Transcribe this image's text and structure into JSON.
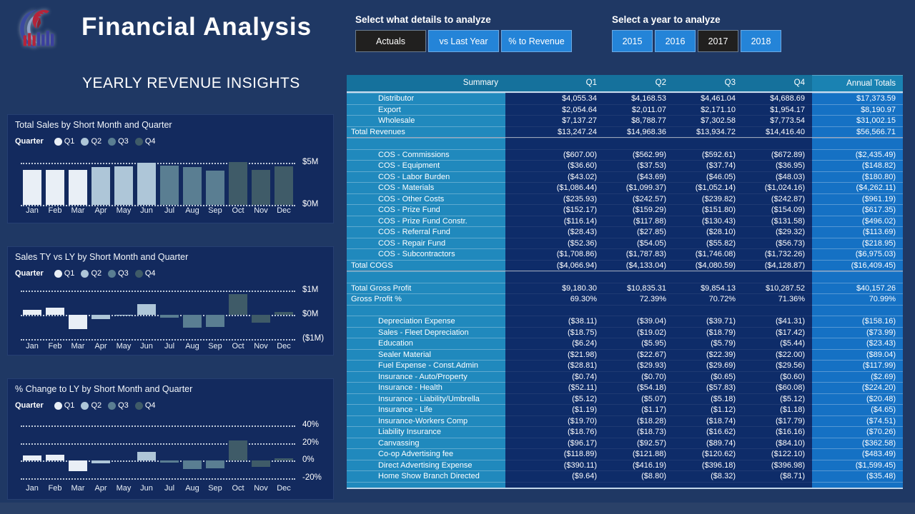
{
  "app": {
    "title": "Financial Analysis",
    "subtitle": "YEARLY REVENUE INSIGHTS",
    "logo": "eagle-bars-logo"
  },
  "colors": {
    "page_bg": "#1F3864",
    "card_bg": "#132A5E",
    "footer_bg": "#2A4168",
    "button_blue": "#2484D8",
    "button_dark": "#21201F",
    "table_header": "#15719C",
    "table_summary_col": "#2089BD",
    "table_data_bg": "#0E2C69",
    "table_annual_col": "#1571C4",
    "q1": "#E9EFF6",
    "q2": "#AEC6D8",
    "q3": "#5A7E92",
    "q4": "#3F5B68"
  },
  "slicers": {
    "details": {
      "label": "Select what details to analyze",
      "options": [
        {
          "label": "Actuals",
          "selected": true
        },
        {
          "label": "vs Last Year",
          "selected": false
        },
        {
          "label": "% to Revenue",
          "selected": false
        }
      ]
    },
    "year": {
      "label": "Select a year to analyze",
      "options": [
        {
          "label": "2015",
          "selected": false
        },
        {
          "label": "2016",
          "selected": false
        },
        {
          "label": "2017",
          "selected": true
        },
        {
          "label": "2018",
          "selected": false
        }
      ]
    }
  },
  "legend": {
    "caption": "Quarter",
    "entries": [
      "Q1",
      "Q2",
      "Q3",
      "Q4"
    ]
  },
  "chart_data": [
    {
      "type": "bar",
      "title": "Total Sales by Short Month and Quarter",
      "categories": [
        "Jan",
        "Feb",
        "Mar",
        "Apr",
        "May",
        "Jun",
        "Jul",
        "Aug",
        "Sep",
        "Oct",
        "Nov",
        "Dec"
      ],
      "values": [
        4.2,
        4.2,
        4.15,
        4.55,
        4.6,
        5.05,
        4.65,
        4.55,
        4.1,
        5.1,
        4.2,
        4.6
      ],
      "unit": "$M",
      "quarter_of_month": [
        1,
        1,
        1,
        2,
        2,
        2,
        3,
        3,
        3,
        4,
        4,
        4
      ],
      "legend_entries": [
        "Q1",
        "Q2",
        "Q3",
        "Q4"
      ],
      "gridlines": [
        {
          "value": 5,
          "label": "$5M"
        },
        {
          "value": 0,
          "label": "$0M"
        }
      ],
      "ylim": [
        0,
        5.45
      ],
      "grid": "dotted",
      "legend_position": "top"
    },
    {
      "type": "bar",
      "title": "Sales TY vs LY by Short Month and Quarter",
      "categories": [
        "Jan",
        "Feb",
        "Mar",
        "Apr",
        "May",
        "Jun",
        "Jul",
        "Aug",
        "Sep",
        "Oct",
        "Nov",
        "Dec"
      ],
      "values": [
        0.22,
        0.29,
        -0.59,
        -0.18,
        -0.03,
        0.45,
        -0.13,
        -0.54,
        -0.49,
        0.85,
        -0.33,
        0.11
      ],
      "unit": "$M",
      "quarter_of_month": [
        1,
        1,
        1,
        2,
        2,
        2,
        3,
        3,
        3,
        4,
        4,
        4
      ],
      "legend_entries": [
        "Q1",
        "Q2",
        "Q3",
        "Q4"
      ],
      "gridlines": [
        {
          "value": 1,
          "label": "$1M"
        },
        {
          "value": 0,
          "label": "$0M"
        },
        {
          "value": -1,
          "label": "($1M)"
        }
      ],
      "ylim": [
        -1.12,
        1.12
      ],
      "grid": "dotted",
      "legend_position": "top"
    },
    {
      "type": "bar",
      "title": "% Change to LY by Short Month and Quarter",
      "categories": [
        "Jan",
        "Feb",
        "Mar",
        "Apr",
        "May",
        "Jun",
        "Jul",
        "Aug",
        "Sep",
        "Oct",
        "Nov",
        "Dec"
      ],
      "values": [
        6,
        7,
        -12,
        -3,
        0,
        10,
        -2,
        -10,
        -9,
        23,
        -7,
        3
      ],
      "unit": "%",
      "quarter_of_month": [
        1,
        1,
        1,
        2,
        2,
        2,
        3,
        3,
        3,
        4,
        4,
        4
      ],
      "legend_entries": [
        "Q1",
        "Q2",
        "Q3",
        "Q4"
      ],
      "gridlines": [
        {
          "value": 40,
          "label": "40%"
        },
        {
          "value": 20,
          "label": "20%"
        },
        {
          "value": 0,
          "label": "0%"
        },
        {
          "value": -20,
          "label": "-20%"
        }
      ],
      "ylim": [
        -26,
        46
      ],
      "grid": "dotted",
      "legend_position": "top"
    }
  ],
  "table": {
    "columns": [
      "Summary",
      "Q1",
      "Q2",
      "Q3",
      "Q4",
      "Annual Totals"
    ],
    "rows": [
      {
        "style": "item",
        "label": "Distributor",
        "values": [
          "$4,055.34",
          "$4,168.53",
          "$4,461.04",
          "$4,688.69",
          "$17,373.59"
        ]
      },
      {
        "style": "item",
        "label": "Export",
        "values": [
          "$2,054.64",
          "$2,011.07",
          "$2,171.10",
          "$1,954.17",
          "$8,190.97"
        ]
      },
      {
        "style": "item",
        "label": "Wholesale",
        "values": [
          "$7,137.27",
          "$8,788.77",
          "$7,302.58",
          "$7,773.54",
          "$31,002.15"
        ]
      },
      {
        "style": "total",
        "label": "Total Revenues",
        "values": [
          "$13,247.24",
          "$14,968.36",
          "$13,934.72",
          "$14,416.40",
          "$56,566.71"
        ]
      },
      {
        "style": "blank",
        "label": "",
        "values": [
          "",
          "",
          "",
          "",
          ""
        ]
      },
      {
        "style": "item",
        "label": "COS - Commissions",
        "values": [
          "($607.00)",
          "($562.99)",
          "($592.61)",
          "($672.89)",
          "($2,435.49)"
        ]
      },
      {
        "style": "item",
        "label": "COS - Equipment",
        "values": [
          "($36.60)",
          "($37.53)",
          "($37.74)",
          "($36.95)",
          "($148.82)"
        ]
      },
      {
        "style": "item",
        "label": "COS - Labor Burden",
        "values": [
          "($43.02)",
          "($43.69)",
          "($46.05)",
          "($48.03)",
          "($180.80)"
        ]
      },
      {
        "style": "item",
        "label": "COS - Materials",
        "values": [
          "($1,086.44)",
          "($1,099.37)",
          "($1,052.14)",
          "($1,024.16)",
          "($4,262.11)"
        ]
      },
      {
        "style": "item",
        "label": "COS - Other Costs",
        "values": [
          "($235.93)",
          "($242.57)",
          "($239.82)",
          "($242.87)",
          "($961.19)"
        ]
      },
      {
        "style": "item",
        "label": "COS - Prize Fund",
        "values": [
          "($152.17)",
          "($159.29)",
          "($151.80)",
          "($154.09)",
          "($617.35)"
        ]
      },
      {
        "style": "item",
        "label": "COS - Prize Fund Constr.",
        "values": [
          "($116.14)",
          "($117.88)",
          "($130.43)",
          "($131.58)",
          "($496.02)"
        ]
      },
      {
        "style": "item",
        "label": "COS - Referral Fund",
        "values": [
          "($28.43)",
          "($27.85)",
          "($28.10)",
          "($29.32)",
          "($113.69)"
        ]
      },
      {
        "style": "item",
        "label": "COS - Repair Fund",
        "values": [
          "($52.36)",
          "($54.05)",
          "($55.82)",
          "($56.73)",
          "($218.95)"
        ]
      },
      {
        "style": "item",
        "label": "COS - Subcontractors",
        "values": [
          "($1,708.86)",
          "($1,787.83)",
          "($1,746.08)",
          "($1,732.26)",
          "($6,975.03)"
        ]
      },
      {
        "style": "total",
        "label": "Total COGS",
        "values": [
          "($4,066.94)",
          "($4,133.04)",
          "($4,080.59)",
          "($4,128.87)",
          "($16,409.45)"
        ]
      },
      {
        "style": "blank",
        "label": "",
        "values": [
          "",
          "",
          "",
          "",
          ""
        ]
      },
      {
        "style": "subtotal",
        "label": "Total Gross Profit",
        "values": [
          "$9,180.30",
          "$10,835.31",
          "$9,854.13",
          "$10,287.52",
          "$40,157.26"
        ]
      },
      {
        "style": "subtotal",
        "label": "Gross Profit %",
        "values": [
          "69.30%",
          "72.39%",
          "70.72%",
          "71.36%",
          "70.99%"
        ]
      },
      {
        "style": "blank",
        "label": "",
        "values": [
          "",
          "",
          "",
          "",
          ""
        ]
      },
      {
        "style": "item",
        "label": "Depreciation Expense",
        "values": [
          "($38.11)",
          "($39.04)",
          "($39.71)",
          "($41.31)",
          "($158.16)"
        ]
      },
      {
        "style": "item",
        "label": "Sales - Fleet Depreciation",
        "values": [
          "($18.75)",
          "($19.02)",
          "($18.79)",
          "($17.42)",
          "($73.99)"
        ]
      },
      {
        "style": "item",
        "label": "Education",
        "values": [
          "($6.24)",
          "($5.95)",
          "($5.79)",
          "($5.44)",
          "($23.43)"
        ]
      },
      {
        "style": "item",
        "label": "Sealer Material",
        "values": [
          "($21.98)",
          "($22.67)",
          "($22.39)",
          "($22.00)",
          "($89.04)"
        ]
      },
      {
        "style": "item",
        "label": "Fuel Expense - Const.Admin",
        "values": [
          "($28.81)",
          "($29.93)",
          "($29.69)",
          "($29.56)",
          "($117.99)"
        ]
      },
      {
        "style": "item",
        "label": "Insurance - Auto/Property",
        "values": [
          "($0.74)",
          "($0.70)",
          "($0.65)",
          "($0.60)",
          "($2.69)"
        ]
      },
      {
        "style": "item",
        "label": "Insurance - Health",
        "values": [
          "($52.11)",
          "($54.18)",
          "($57.83)",
          "($60.08)",
          "($224.20)"
        ]
      },
      {
        "style": "item",
        "label": "Insurance - Liability/Umbrella",
        "values": [
          "($5.12)",
          "($5.07)",
          "($5.18)",
          "($5.12)",
          "($20.48)"
        ]
      },
      {
        "style": "item",
        "label": "Insurance - Life",
        "values": [
          "($1.19)",
          "($1.17)",
          "($1.12)",
          "($1.18)",
          "($4.65)"
        ]
      },
      {
        "style": "item",
        "label": "Insurance-Workers Comp",
        "values": [
          "($19.70)",
          "($18.28)",
          "($18.74)",
          "($17.79)",
          "($74.51)"
        ]
      },
      {
        "style": "item",
        "label": "Liability Insurance",
        "values": [
          "($18.76)",
          "($18.73)",
          "($16.62)",
          "($16.16)",
          "($70.26)"
        ]
      },
      {
        "style": "item",
        "label": "Canvassing",
        "values": [
          "($96.17)",
          "($92.57)",
          "($89.74)",
          "($84.10)",
          "($362.58)"
        ]
      },
      {
        "style": "item",
        "label": "Co-op Advertising fee",
        "values": [
          "($118.89)",
          "($121.88)",
          "($120.62)",
          "($122.10)",
          "($483.49)"
        ]
      },
      {
        "style": "item",
        "label": "Direct Advertising Expense",
        "values": [
          "($390.11)",
          "($416.19)",
          "($396.18)",
          "($396.98)",
          "($1,599.45)"
        ]
      },
      {
        "style": "item",
        "label": "Home Show Branch Directed",
        "values": [
          "($9.64)",
          "($8.80)",
          "($8.32)",
          "($8.71)",
          "($35.48)"
        ]
      },
      {
        "style": "clipped",
        "label": "",
        "values": [
          "",
          "",
          "",
          "",
          ""
        ]
      }
    ]
  }
}
